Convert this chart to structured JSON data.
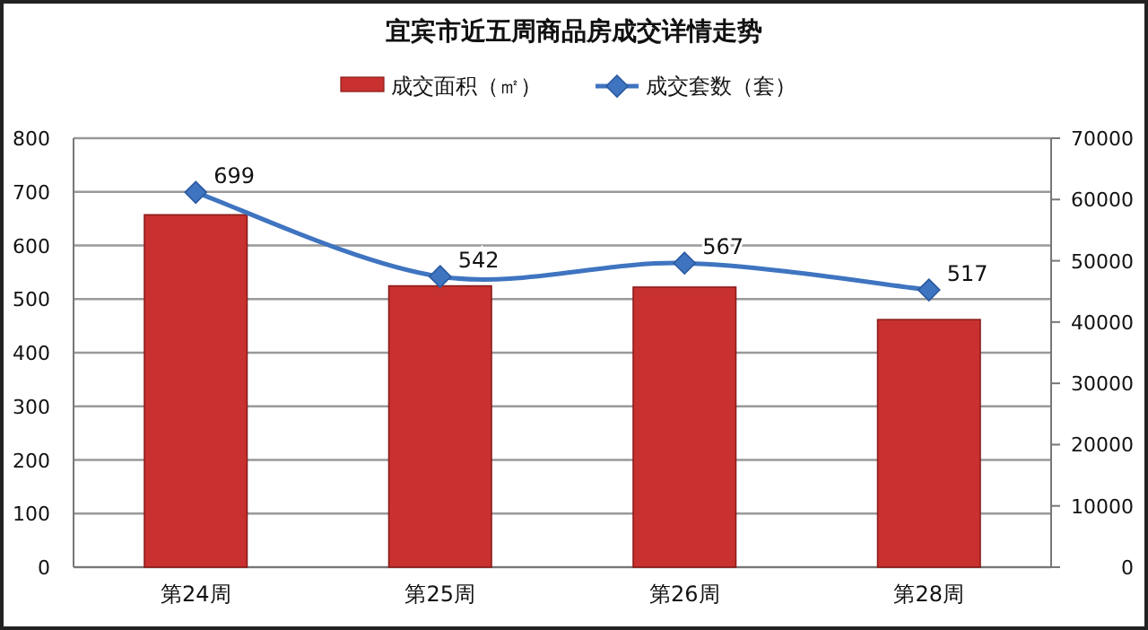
{
  "chart_data": {
    "type": "bar",
    "title": "宜宾市近五周商品房成交详情走势",
    "categories": [
      "第24周",
      "第25周",
      "第26周",
      "第28周"
    ],
    "series": [
      {
        "name": "成交面积（㎡）",
        "axis": "y2",
        "color": "#c8312f",
        "values": [
          57500,
          45900,
          45700,
          40400
        ]
      },
      {
        "name": "成交套数（套）",
        "type": "line",
        "color": "#3f74c0",
        "values": [
          699,
          542,
          567,
          517
        ],
        "value_labels": [
          "699",
          "542",
          "567",
          "517"
        ],
        "marker": "diamond"
      }
    ],
    "ylim": [
      0,
      800
    ],
    "yticks": [
      0,
      100,
      200,
      300,
      400,
      500,
      600,
      700,
      800
    ],
    "y2lim": [
      0,
      70000
    ],
    "y2ticks": [
      0,
      10000,
      20000,
      30000,
      40000,
      50000,
      60000,
      70000
    ],
    "grid": "y",
    "legend": "top"
  }
}
